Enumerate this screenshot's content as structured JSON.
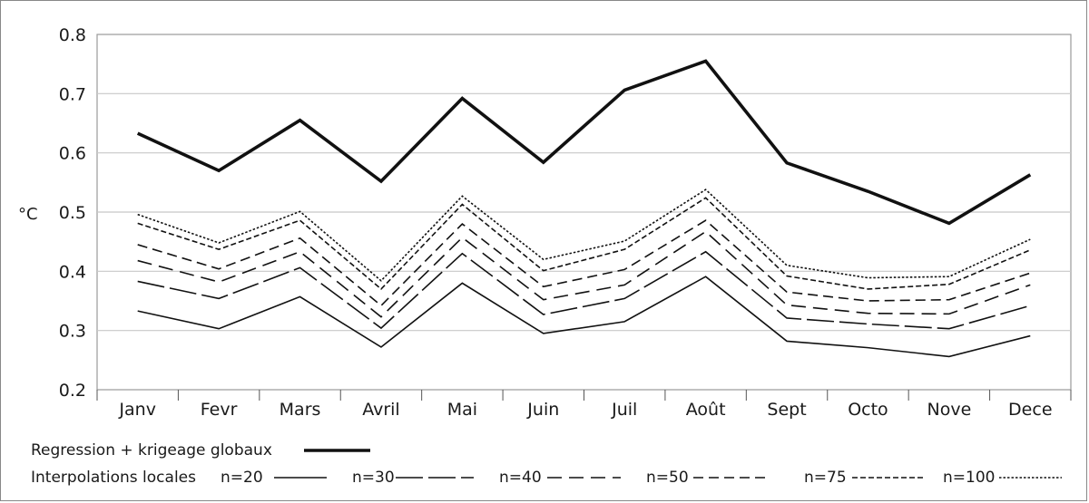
{
  "chart_data": {
    "type": "line",
    "ylabel": "°C",
    "xlabel": "",
    "ylim": [
      0.2,
      0.8
    ],
    "yticks": [
      "0.2",
      "0.3",
      "0.4",
      "0.5",
      "0.6",
      "0.7",
      "0.8"
    ],
    "categories": [
      "Janv",
      "Fevr",
      "Mars",
      "Avril",
      "Mai",
      "Juin",
      "Juil",
      "Août",
      "Sept",
      "Octo",
      "Nove",
      "Dece"
    ],
    "grid": "horizontal",
    "series": [
      {
        "name": "Regression + krigeage globaux",
        "style": "thick-solid",
        "values": [
          0.633,
          0.57,
          0.655,
          0.552,
          0.692,
          0.584,
          0.706,
          0.755,
          0.583,
          0.535,
          0.481,
          0.563
        ]
      },
      {
        "name": "n=20",
        "style": "solid",
        "values": [
          0.333,
          0.303,
          0.357,
          0.272,
          0.38,
          0.295,
          0.315,
          0.391,
          0.282,
          0.271,
          0.256,
          0.291
        ]
      },
      {
        "name": "n=30",
        "style": "long-dash",
        "values": [
          0.383,
          0.354,
          0.406,
          0.304,
          0.43,
          0.327,
          0.354,
          0.433,
          0.321,
          0.311,
          0.303,
          0.342
        ]
      },
      {
        "name": "n=40",
        "style": "dash",
        "values": [
          0.418,
          0.382,
          0.433,
          0.323,
          0.457,
          0.352,
          0.377,
          0.467,
          0.343,
          0.329,
          0.328,
          0.377
        ]
      },
      {
        "name": "n=50",
        "style": "medium-dash",
        "values": [
          0.445,
          0.404,
          0.456,
          0.342,
          0.48,
          0.374,
          0.403,
          0.486,
          0.365,
          0.35,
          0.352,
          0.397
        ]
      },
      {
        "name": "n=75",
        "style": "short-dash",
        "values": [
          0.481,
          0.437,
          0.486,
          0.37,
          0.513,
          0.401,
          0.437,
          0.524,
          0.392,
          0.37,
          0.378,
          0.436
        ]
      },
      {
        "name": "n=100",
        "style": "dotted",
        "values": [
          0.496,
          0.448,
          0.501,
          0.384,
          0.527,
          0.42,
          0.451,
          0.538,
          0.41,
          0.389,
          0.391,
          0.454
        ]
      }
    ],
    "legend": {
      "placement": "bottom",
      "global_label": "Regression + krigeage globaux",
      "local_prefix": "Interpolations locales"
    }
  }
}
